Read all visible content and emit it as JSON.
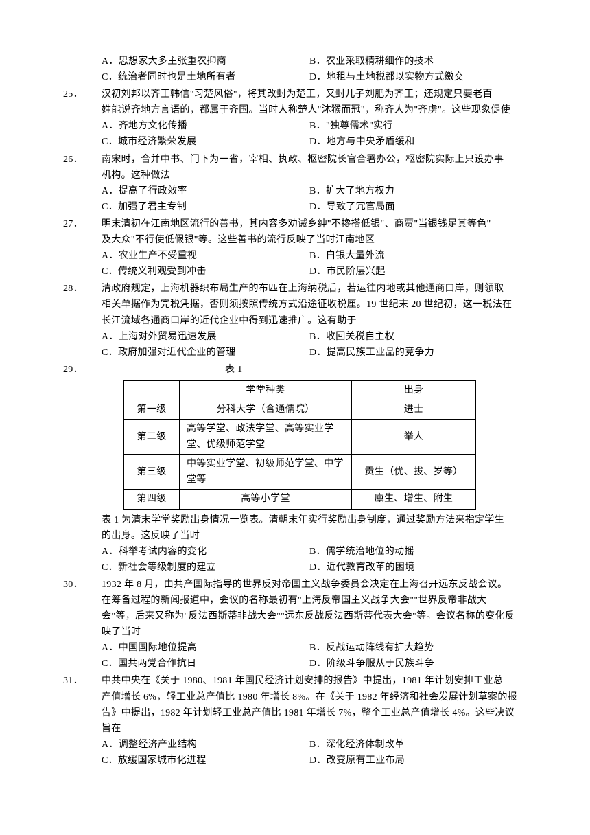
{
  "q24": {
    "optA": "A．思想家大多主张重农抑商",
    "optB": "B．农业采取精耕细作的技术",
    "optC": "C．统治者同时也是土地所有者",
    "optD": "D．地租与土地税都以实物方式缴交"
  },
  "q25": {
    "num": "25．",
    "stem1": "汉初刘邦以齐王韩信\"习楚风俗\"，将其改封为楚王，又封儿子刘肥为齐王；还规定只要老百",
    "stem2": "姓能说齐地方言语的，都属于齐国。当时人称楚人\"沐猴而冠\"，称齐人为\"齐虏\"。这些现象促使",
    "optA": "A．齐地方文化传播",
    "optB": "B．\"独尊儒术\"实行",
    "optC": "C．城市经济繁荣发展",
    "optD": "D．地方与中央矛盾缓和"
  },
  "q26": {
    "num": "26．",
    "stem1": "南宋时，合并中书、门下为一省，宰相、执政、枢密院长官合署办公，枢密院实际上只设办事",
    "stem2": "机构。这种做法",
    "optA": "A．提高了行政效率",
    "optB": "B．扩大了地方权力",
    "optC": "C．加强了君主专制",
    "optD": "D．导致了冗官局面"
  },
  "q27": {
    "num": "27．",
    "stem1": "明末清初在江南地区流行的善书，其内容多劝诫乡绅\"不搀搭低银\"、商贾\"当银钱足其等色\"",
    "stem2": "及大众\"不行使低假银\"等。这些善书的流行反映了当时江南地区",
    "optA": "A．农业生产不受重视",
    "optB": "B．白银大量外流",
    "optC": "C．传统义利观受到冲击",
    "optD": "D．市民阶层兴起"
  },
  "q28": {
    "num": "28．",
    "stem1": "清政府规定，上海机器织布局生产的布匹在上海纳税后，若运往内地或其他通商口岸，则领取",
    "stem2": "相关单据作为完税凭据，否则须按照传统方式沿途征收税厘。19 世纪末 20 世纪初，这一税法在长江流域各通商口岸的近代企业中得到迅速推广。这有助于",
    "optA": "A．上海对外贸易迅速发展",
    "optB": "B．收回关税自主权",
    "optC": "C．政府加强对近代企业的管理",
    "optD": "D．提高民族工业品的竞争力"
  },
  "q29": {
    "num": "29．",
    "caption": "表 1",
    "table": {
      "header": {
        "type": "学堂种类",
        "status": "出身"
      },
      "rows": [
        {
          "level": "第一级",
          "type": "分科大学（含通儒院）",
          "status": "进士"
        },
        {
          "level": "第二级",
          "type": "高等学堂、政法学堂、高等实业学堂、优级师范学堂",
          "status": "举人"
        },
        {
          "level": "第三级",
          "type": "中等实业学堂、初级师范学堂、中学堂等",
          "status": "贡生（优、拔、岁等）"
        },
        {
          "level": "第四级",
          "type": "高等小学堂",
          "status": "廪生、增生、附生"
        }
      ]
    },
    "after1": "表 1 为清末学堂奖励出身情况一览表。清朝末年实行奖励出身制度，通过奖励方法来指定学生",
    "after2": "的出身。这反映了当时",
    "optA": "A．科举考试内容的变化",
    "optB": "B．儒学统治地位的动摇",
    "optC": "C．新社会等级制度的建立",
    "optD": "D．近代教育改革的困境"
  },
  "q30": {
    "num": "30．",
    "stem1": "1932 年 8 月，由共产国际指导的世界反对帝国主义战争委员会决定在上海召开远东反战会议。",
    "stem2": "在筹备过程的新闻报道中，会议的名称最初有\"上海反帝国主义战争大会\"\"世界反帝非战大会\"等，后来又称为\"反法西斯蒂非战大会\"\"远东反战反法西斯蒂代表大会\"等。会议名称的变化反映了当时",
    "optA": "A．中国国际地位提高",
    "optB": "B．反战运动阵线有扩大趋势",
    "optC": "C．国共两党合作抗日",
    "optD": "D．阶级斗争服从于民族斗争"
  },
  "q31": {
    "num": "31．",
    "stem1": "中共中央在《关于 1980、1981 年国民经济计划安排的报告》中提出，1981 年计划安排工业总",
    "stem2": "产值增长 6%，轻工业总产值比 1980 年增长 8%。在《关于 1982 年经济和社会发展计划草案的报告》中提出，1982 年计划轻工业总产值比 1981 年增长 7%，整个工业总产值增长 4%。这些决议旨在",
    "optA": "A．调整经济产业结构",
    "optB": "B．深化经济体制改革",
    "optC": "C．放缓国家城市化进程",
    "optD": "D．改变原有工业布局"
  }
}
